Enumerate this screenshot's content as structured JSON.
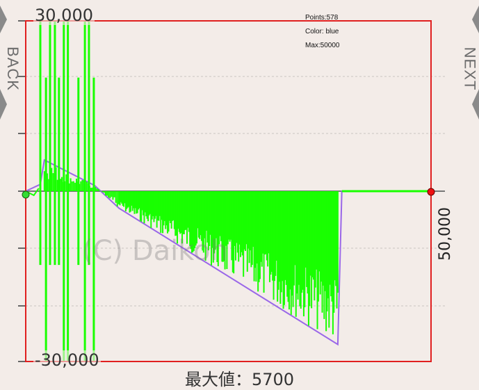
{
  "nav": {
    "back_label": "BACK",
    "next_label": "NEXT"
  },
  "info": {
    "points": "Points:578",
    "color": "Color: blue",
    "max": "Max:50000"
  },
  "watermark": "(C) Daikoh",
  "footer_label": "最大値：5700",
  "colors": {
    "background": "#f3ece8",
    "frame": "#e01f1f",
    "trace": "#19ff00",
    "envelope": "#9a67e8",
    "grid": "#c9c3c0",
    "start_marker": "#33dd33",
    "end_marker": "#ee1111"
  },
  "chart_data": {
    "type": "line",
    "y_top_label": "30,000",
    "y_bottom_label": "-30,000",
    "x_max_label": "50,000",
    "ylim": [
      -30000,
      30000
    ],
    "xlim": [
      0,
      50000
    ],
    "grid": true,
    "series": [
      {
        "values": [
          [
            0,
            0
          ],
          [
            1800,
            1200
          ],
          [
            2300,
            5500
          ],
          [
            8500,
            1000
          ],
          [
            11500,
            -3000
          ],
          [
            38500,
            -27000
          ],
          [
            39000,
            0
          ],
          [
            50000,
            0
          ]
        ]
      }
    ]
  }
}
